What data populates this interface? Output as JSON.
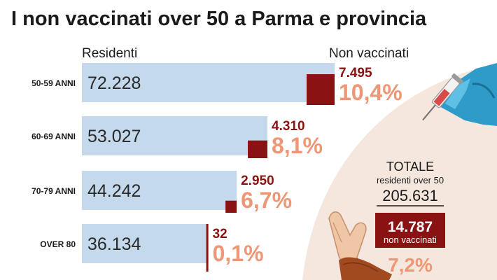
{
  "chart_data": {
    "type": "bar",
    "title": "I non vaccinati over 50 a Parma e provincia",
    "column_left": "Residenti",
    "column_right": "Non vaccinati",
    "categories": [
      "50-59 ANNI",
      "60-69 ANNI",
      "70-79 ANNI",
      "OVER 80"
    ],
    "series": [
      {
        "name": "Residenti",
        "values": [
          72228,
          53027,
          44242,
          36134
        ],
        "labels": [
          "72.228",
          "53.027",
          "44.242",
          "36.134"
        ]
      },
      {
        "name": "Non vaccinati",
        "values": [
          7495,
          4310,
          2950,
          32
        ],
        "labels": [
          "7.495",
          "4.310",
          "2.950",
          "32"
        ],
        "percent_labels": [
          "10,4%",
          "8,1%",
          "6,7%",
          "0,1%"
        ]
      }
    ],
    "totals": {
      "heading": "TOTALE",
      "subheading": "residenti over 50",
      "residents": "205.631",
      "unvaccinated": "14.787",
      "unvaccinated_label": "non vaccinati",
      "percent": "7,2%"
    }
  },
  "colors": {
    "resident_bar": "#c5d9ec",
    "unvaccinated_bar": "#8b1212",
    "unvaccinated_text": "#8b1212",
    "percent_text": "#ef9676",
    "background_arc": "#f6e7de"
  },
  "icons": {
    "syringe": "syringe-glove-icon",
    "stop_hand": "stop-hand-icon"
  }
}
